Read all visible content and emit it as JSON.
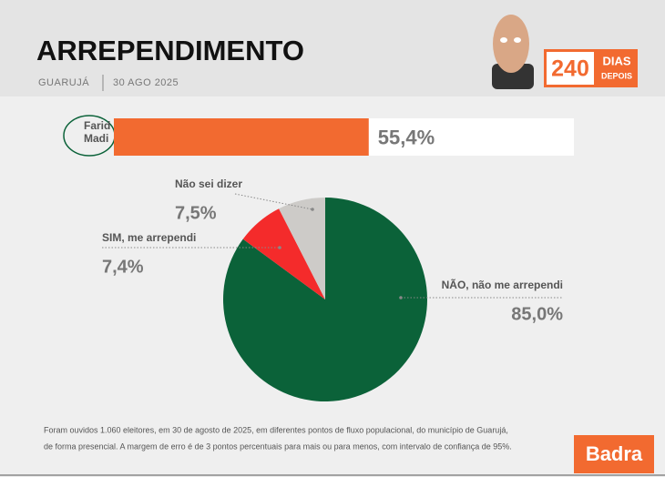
{
  "header": {
    "title": "ARREPENDIMENTO",
    "location": "GUARUJÁ",
    "date": "30 AGO 2025",
    "badge": {
      "number": "240",
      "line1": "DIAS",
      "line2": "DEPOIS"
    }
  },
  "chart_data": [
    {
      "type": "bar",
      "categories": [
        "Farid Madi"
      ],
      "values": [
        55.4
      ],
      "value_labels": [
        "55,4%"
      ],
      "color": "#f26a30",
      "xlim": [
        0,
        100
      ]
    },
    {
      "type": "pie",
      "categories": [
        "NÃO, não me arrependi",
        "SIM, me arrependi",
        "Não sei dizer"
      ],
      "values": [
        85.0,
        7.4,
        7.5
      ],
      "value_labels": [
        "85,0%",
        "7,4%",
        "7,5%"
      ],
      "colors": [
        "#0b6239",
        "#f42b2b",
        "#cdcbc8"
      ]
    }
  ],
  "footer": {
    "note": [
      "Foram ouvidos 1.060 eleitores, em 30 de agosto de 2025, em diferentes pontos de fluxo populacional, do município de Guarujá,",
      "de forma presencial. A margem de erro é de 3 pontos percentuais para mais ou para menos, com intervalo de confiança de 95%."
    ],
    "brand": "Badra"
  }
}
